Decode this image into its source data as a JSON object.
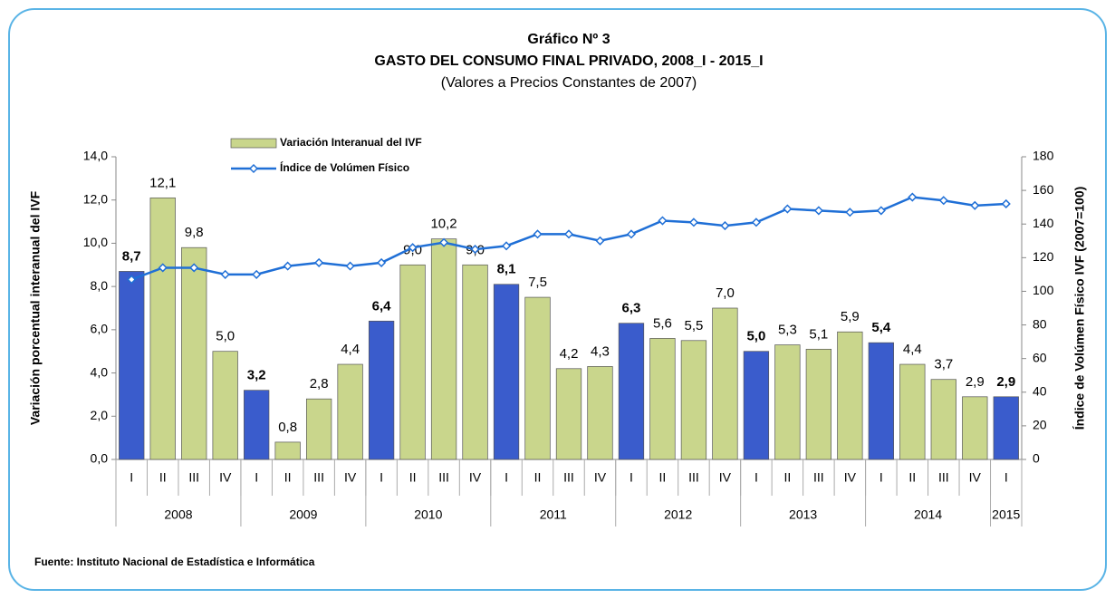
{
  "chart_data": {
    "type": "bar-line",
    "title": "Gráfico Nº 3",
    "subtitle": "GASTO DEL CONSUMO FINAL PRIVADO, 2008_I - 2015_I",
    "note": "(Valores a Precios Constantes de 2007)",
    "ylabel": "Variación porcentual interanual del IVF",
    "y2label": "Índice de Volúmen Físico IVF (2007=100)",
    "source": "Fuente: Instituto Nacional de Estadística e Informática",
    "categories": [
      "I",
      "II",
      "III",
      "IV",
      "I",
      "II",
      "III",
      "IV",
      "I",
      "II",
      "III",
      "IV",
      "I",
      "II",
      "III",
      "IV",
      "I",
      "II",
      "III",
      "IV",
      "I",
      "II",
      "III",
      "IV",
      "I",
      "II",
      "III",
      "IV",
      "I"
    ],
    "category_groups": [
      {
        "name": "2008",
        "count": 4
      },
      {
        "name": "2009",
        "count": 4
      },
      {
        "name": "2010",
        "count": 4
      },
      {
        "name": "2011",
        "count": 4
      },
      {
        "name": "2012",
        "count": 4
      },
      {
        "name": "2013",
        "count": 4
      },
      {
        "name": "2014",
        "count": 4
      },
      {
        "name": "2015",
        "count": 1
      }
    ],
    "ylim": [
      0,
      14
    ],
    "yticks": [
      {
        "value": 0,
        "label": "0,0"
      },
      {
        "value": 2,
        "label": "2,0"
      },
      {
        "value": 4,
        "label": "4,0"
      },
      {
        "value": 6,
        "label": "6,0"
      },
      {
        "value": 8,
        "label": "8,0"
      },
      {
        "value": 10,
        "label": "10,0"
      },
      {
        "value": 12,
        "label": "12,0"
      },
      {
        "value": 14,
        "label": "14,0"
      }
    ],
    "y2lim": [
      0,
      180
    ],
    "y2ticks": [
      0,
      20,
      40,
      60,
      80,
      100,
      120,
      140,
      160,
      180
    ],
    "legend": "top-left",
    "series": [
      {
        "name": "Variación Interanual del IVF",
        "type": "bar",
        "color": "#c9d68c",
        "highlight_color": "#3a5ccc",
        "colors": [
          "#3a5ccc",
          "#c9d68c",
          "#c9d68c",
          "#c9d68c",
          "#3a5ccc",
          "#c9d68c",
          "#c9d68c",
          "#c9d68c",
          "#3a5ccc",
          "#c9d68c",
          "#c9d68c",
          "#c9d68c",
          "#3a5ccc",
          "#c9d68c",
          "#c9d68c",
          "#c9d68c",
          "#3a5ccc",
          "#c9d68c",
          "#c9d68c",
          "#c9d68c",
          "#3a5ccc",
          "#c9d68c",
          "#c9d68c",
          "#c9d68c",
          "#3a5ccc",
          "#c9d68c",
          "#c9d68c",
          "#c9d68c",
          "#3a5ccc"
        ],
        "values": [
          8.7,
          12.1,
          9.8,
          5.0,
          3.2,
          0.8,
          2.8,
          4.4,
          6.4,
          9.0,
          10.2,
          9.0,
          8.1,
          7.5,
          4.2,
          4.3,
          6.3,
          5.6,
          5.5,
          7.0,
          5.0,
          5.3,
          5.1,
          5.9,
          5.4,
          4.4,
          3.7,
          2.9,
          2.9
        ],
        "value_labels": [
          "8,7",
          "12,1",
          "9,8",
          "5,0",
          "3,2",
          "0,8",
          "2,8",
          "4,4",
          "6,4",
          "9,0",
          "10,2",
          "9,0",
          "8,1",
          "7,5",
          "4,2",
          "4,3",
          "6,3",
          "5,6",
          "5,5",
          "7,0",
          "5,0",
          "5,3",
          "5,1",
          "5,9",
          "5,4",
          "4,4",
          "3,7",
          "2,9",
          "2,9"
        ]
      },
      {
        "name": "Índice de Volúmen Físico",
        "type": "line",
        "axis": "y2",
        "color": "#1f6fd6",
        "values": [
          107,
          114,
          114,
          110,
          110,
          115,
          117,
          115,
          117,
          126,
          129,
          125,
          127,
          134,
          134,
          130,
          134,
          142,
          141,
          139,
          141,
          149,
          148,
          147,
          148,
          156,
          154,
          151,
          152
        ]
      }
    ]
  }
}
